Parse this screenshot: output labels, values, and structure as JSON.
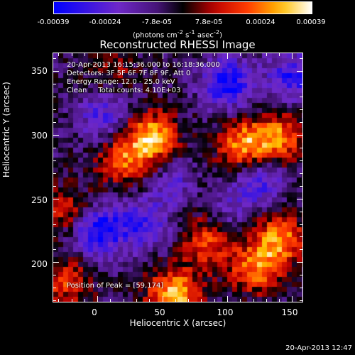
{
  "chart_data": {
    "type": "heatmap",
    "title": "Reconstructed RHESSI Image",
    "xlabel": "Heliocentric X (arcsec)",
    "ylabel": "Heliocentric Y (arcsec)",
    "xlim": [
      -34,
      158
    ],
    "ylim": [
      169,
      364
    ],
    "x_ticks": [
      0,
      50,
      100,
      150
    ],
    "y_ticks": [
      200,
      250,
      300,
      350
    ],
    "colorbar": {
      "ticks": [
        "-0.00039",
        "-0.00024",
        "-7.8e-05",
        "7.8e-05",
        "0.00024",
        "0.00039"
      ],
      "tick_values": [
        -0.00039,
        -0.00024,
        -7.8e-05,
        7.8e-05,
        0.00024,
        0.00039
      ],
      "range": [
        -0.00039,
        0.00039
      ],
      "label_main": "(photons cm",
      "label_exp1": "-2",
      "label_s": " s",
      "label_exp2": "-1",
      "label_asec": " asec",
      "label_exp3": "-2",
      "label_close": ")"
    },
    "annotations": {
      "time": "20-Apr-2013 16:15:36.000 to 16:18:36.000",
      "detectors": "Detectors: 3F 5F 6F 7F 8F 9F, Att 0",
      "energy": "Energy Range: 12.0 - 25.0 keV",
      "clean": "Clean     Total counts: 4.10E+03",
      "peak": "Position of Peak = [59,174]"
    },
    "sources": [
      {
        "x": 42,
        "y": 298,
        "value": 0.00036
      },
      {
        "x": 20,
        "y": 280,
        "value": 0.00026
      },
      {
        "x": 112,
        "y": 292,
        "value": 0.00033
      },
      {
        "x": 140,
        "y": 297,
        "value": 0.0003
      },
      {
        "x": 140,
        "y": 218,
        "value": 0.00032
      },
      {
        "x": 122,
        "y": 195,
        "value": 0.00028
      },
      {
        "x": 85,
        "y": 215,
        "value": 0.00024
      },
      {
        "x": 59,
        "y": 174,
        "value": 0.00039
      },
      {
        "x": -22,
        "y": 240,
        "value": 0.0002
      },
      {
        "x": -25,
        "y": 185,
        "value": 0.00022
      },
      {
        "x": 10,
        "y": 350,
        "value": 0.00012
      },
      {
        "x": 75,
        "y": 250,
        "value": 8e-05
      },
      {
        "x": 5,
        "y": 315,
        "value": -0.0002
      },
      {
        "x": 0,
        "y": 225,
        "value": -0.00034
      },
      {
        "x": 100,
        "y": 340,
        "value": -0.0003
      },
      {
        "x": 60,
        "y": 260,
        "value": -0.00018
      },
      {
        "x": 125,
        "y": 265,
        "value": -0.00022
      },
      {
        "x": 150,
        "y": 345,
        "value": -0.00025
      },
      {
        "x": 35,
        "y": 230,
        "value": -0.00022
      },
      {
        "x": 100,
        "y": 240,
        "value": -0.00012
      }
    ]
  },
  "timestamp": "20-Apr-2013 12:47"
}
